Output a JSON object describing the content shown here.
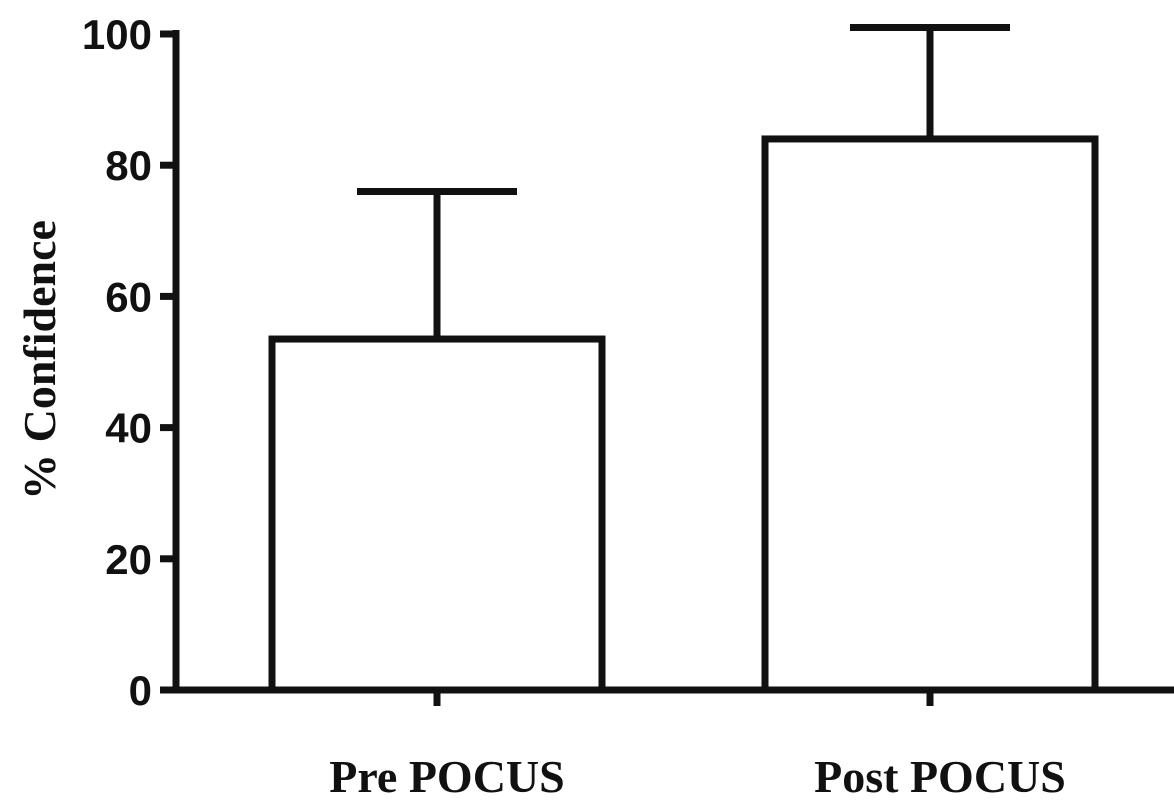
{
  "chart_data": {
    "type": "bar",
    "categories": [
      "Pre POCUS",
      "Post POCUS"
    ],
    "values": [
      53.5,
      84
    ],
    "error_upper": [
      76,
      101
    ],
    "ylabel": "% Confidence",
    "xlabel": "",
    "ylim": [
      0,
      100
    ],
    "yticks": [
      0,
      20,
      40,
      60,
      80,
      100
    ],
    "bar_fill": "#ffffff",
    "stroke_color": "#111111",
    "grid": false
  }
}
